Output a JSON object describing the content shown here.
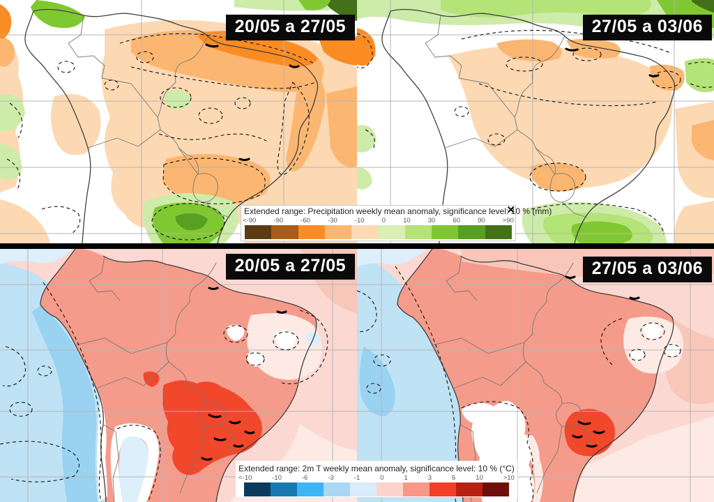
{
  "app": {
    "description": "Extended range weekly anomaly forecast maps for South America"
  },
  "panels": [
    {
      "id": "precip-week1",
      "row": "precipitation",
      "date_label": "20/05 a 27/05"
    },
    {
      "id": "precip-week2",
      "row": "precipitation",
      "date_label": "27/05 a 03/06"
    },
    {
      "id": "temp-week1",
      "row": "temperature",
      "date_label": "20/05 a 27/05"
    },
    {
      "id": "temp-week2",
      "row": "temperature",
      "date_label": "27/05 a 03/06"
    }
  ],
  "legends": {
    "precipitation": {
      "title": "Extended range: Precipitation weekly mean anomaly, significance level: 10 % (mm)",
      "unit": "mm",
      "ticks": [
        "<-90",
        "-90",
        "-60",
        "-30",
        "-10",
        "0",
        "10",
        "30",
        "60",
        "90",
        ">90"
      ],
      "colors": [
        "#5e3a11",
        "#a85c17",
        "#fb8c24",
        "#fbb671",
        "#fdd9b4",
        "#d9efb4",
        "#b4e378",
        "#80c832",
        "#58a022",
        "#45701a"
      ],
      "close_icon": "✕"
    },
    "temperature": {
      "title": "Extended range: 2m T weekly mean anomaly, significance level: 10 % (°C)",
      "unit": "°C",
      "ticks": [
        "<-10",
        "-10",
        "-6",
        "-3",
        "-1",
        "0",
        "1",
        "3",
        "6",
        "10",
        ">10"
      ],
      "colors": [
        "#0c3a5c",
        "#1779b0",
        "#3cb5f5",
        "#a8d8f5",
        "#d8ecfa",
        "#fcd4cc",
        "#f89888",
        "#f04028",
        "#b82012",
        "#6e100a"
      ]
    }
  },
  "chart_data": [
    {
      "type": "heatmap",
      "title": "Extended range: Precipitation weekly mean anomaly, significance level: 10 % (mm)",
      "panels": [
        "20/05 a 27/05",
        "27/05 a 03/06"
      ],
      "scale_ticks": [
        "<-90",
        "-90",
        "-60",
        "-30",
        "-10",
        "0",
        "10",
        "30",
        "60",
        "90",
        ">90"
      ],
      "scale_colors": [
        "#5e3a11",
        "#a85c17",
        "#fb8c24",
        "#fbb671",
        "#fdd9b4",
        "#d9efb4",
        "#b4e378",
        "#80c832",
        "#58a022",
        "#45701a"
      ],
      "legend_position": "bottom-center"
    },
    {
      "type": "heatmap",
      "title": "Extended range: 2m T weekly mean anomaly, significance level: 10 % (°C)",
      "panels": [
        "20/05 a 27/05",
        "27/05 a 03/06"
      ],
      "scale_ticks": [
        "<-10",
        "-10",
        "-6",
        "-3",
        "-1",
        "0",
        "1",
        "3",
        "6",
        "10",
        ">10"
      ],
      "scale_colors": [
        "#0c3a5c",
        "#1779b0",
        "#3cb5f5",
        "#a8d8f5",
        "#d8ecfa",
        "#fcd4cc",
        "#f89888",
        "#f04028",
        "#b82012",
        "#6e100a"
      ],
      "legend_position": "bottom-center"
    }
  ],
  "palette": {
    "p_bg": "#ffffff",
    "p_peach": "#fcd9b3",
    "p_orange_light": "#fbb671",
    "p_orange": "#fb8c24",
    "p_green_pale": "#cdeba9",
    "p_green_light": "#b4e378",
    "p_green": "#80c832",
    "p_green_mid": "#58a022",
    "p_green_dark": "#45701a",
    "t_land": "#f59b8b",
    "t_land_light": "#f9c6ba",
    "t_hot": "#f1472b",
    "t_ocean": "#bfe2f5",
    "t_ocean_deep": "#9ad2f2",
    "t_ocean_pale": "#dceffb",
    "t_pink": "#fbd8d1",
    "t_pink_pale": "#fdeae5",
    "grid": "#b5b5b5",
    "coast": "#3f3f3f",
    "border_line": "#777777",
    "contour": "#111111",
    "divider": "#000000",
    "label_bg": "#0a0a0a",
    "label_text": "#ffffff",
    "legend_bg": "#ffffff",
    "legend_text": "#222222"
  }
}
